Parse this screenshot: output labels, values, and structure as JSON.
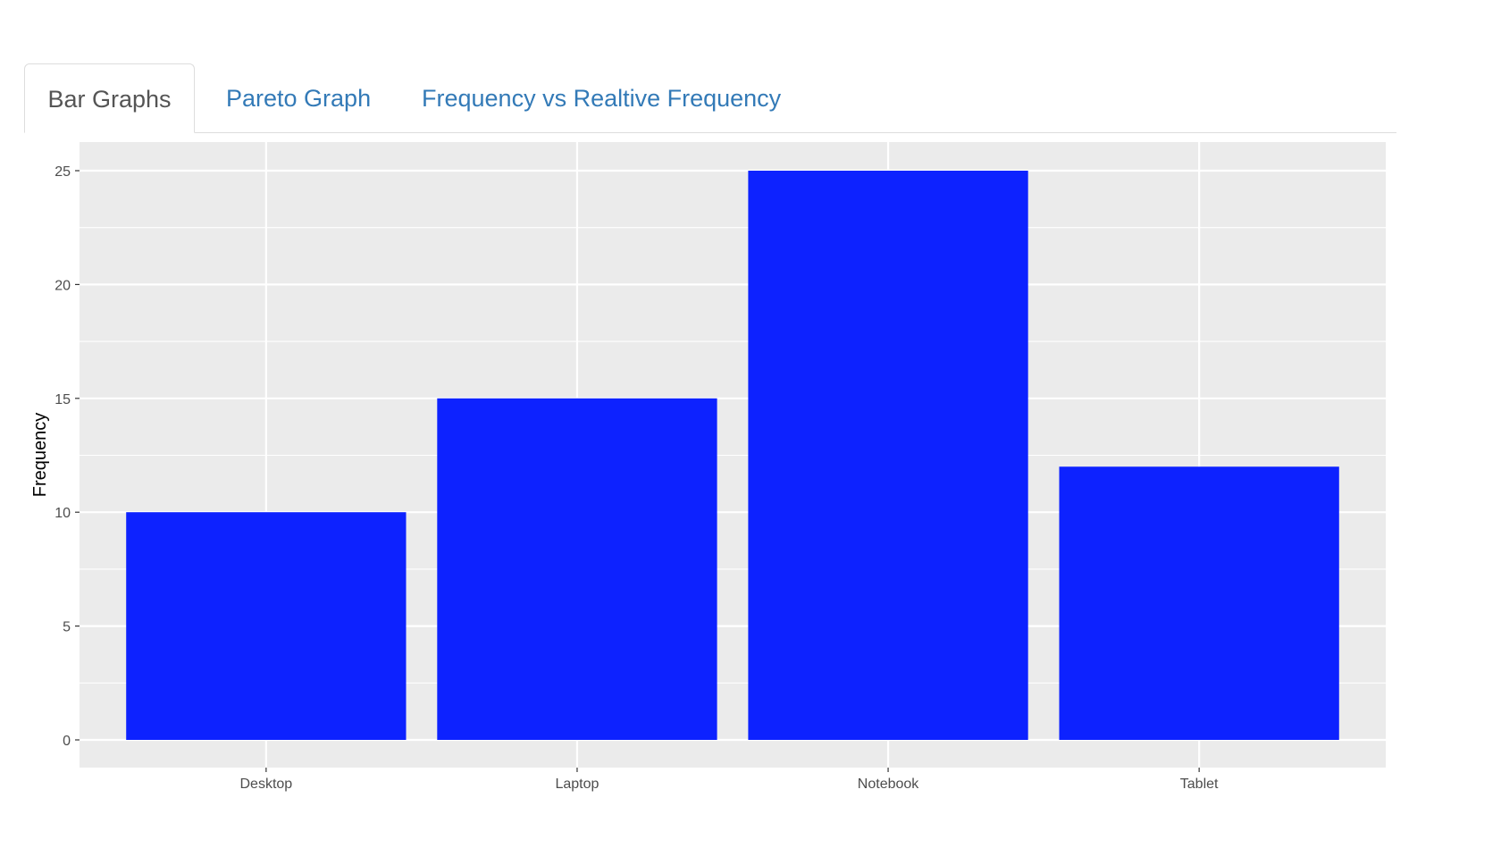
{
  "tabs": {
    "bar_graphs": "Bar Graphs",
    "pareto_graph": "Pareto Graph",
    "frequency_vs_relative": "Frequency vs Realtive Frequency"
  },
  "colors": {
    "bar_fill": "#0d22ff",
    "panel_background": "#ebebeb",
    "grid_line": "#ffffff",
    "link": "#337ab7"
  },
  "chart_data": {
    "type": "bar",
    "categories": [
      "Desktop",
      "Laptop",
      "Notebook",
      "Tablet"
    ],
    "values": [
      10,
      15,
      25,
      12
    ],
    "xlabel": "",
    "ylabel": "Frequency",
    "ylim": [
      0,
      25
    ],
    "yticks": [
      0,
      5,
      10,
      15,
      20,
      25
    ],
    "grid": true
  }
}
